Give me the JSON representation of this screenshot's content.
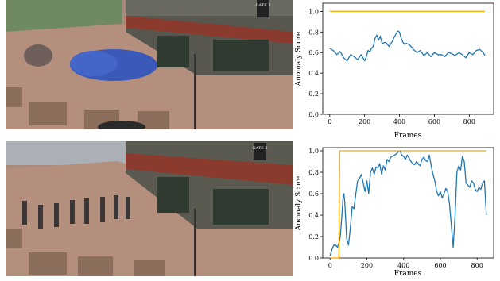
{
  "photos": [
    {
      "scene": "plaza crowd in blue uniforms",
      "sign_text": "GATE 3"
    },
    {
      "scene": "plaza pedestrians scattering",
      "sign_text": "GATE 3"
    }
  ],
  "colors": {
    "score": "#1f77b4",
    "label": "#ffa500"
  },
  "chart_data": [
    {
      "type": "line",
      "xlabel": "Frames",
      "ylabel": "Anomaly Score",
      "xlim": [
        -40,
        940
      ],
      "ylim": [
        0,
        1.08
      ],
      "xticks": [
        0,
        200,
        400,
        600,
        800
      ],
      "yticks": [
        0.0,
        0.2,
        0.4,
        0.6,
        0.8,
        1.0
      ],
      "series": [
        {
          "role": "score",
          "color": "#1f77b4",
          "x": [
            0,
            20,
            40,
            60,
            80,
            100,
            120,
            140,
            160,
            180,
            200,
            210,
            220,
            230,
            240,
            250,
            260,
            270,
            280,
            290,
            300,
            320,
            340,
            360,
            370,
            380,
            390,
            400,
            410,
            420,
            430,
            440,
            460,
            480,
            500,
            520,
            540,
            560,
            580,
            600,
            620,
            640,
            660,
            680,
            700,
            720,
            740,
            760,
            780,
            800,
            820,
            840,
            860,
            880,
            890
          ],
          "y": [
            0.64,
            0.62,
            0.58,
            0.61,
            0.55,
            0.52,
            0.58,
            0.56,
            0.53,
            0.58,
            0.52,
            0.56,
            0.62,
            0.61,
            0.64,
            0.66,
            0.74,
            0.77,
            0.72,
            0.76,
            0.69,
            0.7,
            0.66,
            0.71,
            0.75,
            0.78,
            0.81,
            0.8,
            0.74,
            0.7,
            0.68,
            0.69,
            0.67,
            0.63,
            0.6,
            0.62,
            0.57,
            0.6,
            0.56,
            0.6,
            0.58,
            0.58,
            0.56,
            0.6,
            0.59,
            0.57,
            0.6,
            0.58,
            0.55,
            0.6,
            0.58,
            0.62,
            0.63,
            0.6,
            0.57
          ]
        },
        {
          "role": "label",
          "color": "#ffa500",
          "x": [
            0,
            890
          ],
          "y": [
            1.0,
            1.0
          ]
        }
      ]
    },
    {
      "type": "line",
      "xlabel": "Frames",
      "ylabel": "Anomaly Score",
      "xlim": [
        -40,
        890
      ],
      "ylim": [
        0,
        1.03
      ],
      "xticks": [
        0,
        200,
        400,
        600,
        800
      ],
      "yticks": [
        0.0,
        0.2,
        0.4,
        0.6,
        0.8,
        1.0
      ],
      "series": [
        {
          "role": "score",
          "color": "#1f77b4",
          "x": [
            0,
            10,
            20,
            30,
            40,
            50,
            55,
            60,
            65,
            70,
            75,
            80,
            90,
            100,
            110,
            120,
            130,
            140,
            150,
            160,
            170,
            180,
            190,
            200,
            210,
            220,
            230,
            240,
            250,
            260,
            270,
            280,
            290,
            300,
            310,
            320,
            330,
            340,
            350,
            360,
            370,
            380,
            390,
            400,
            410,
            420,
            430,
            440,
            450,
            460,
            470,
            480,
            490,
            500,
            510,
            520,
            530,
            540,
            550,
            560,
            570,
            580,
            590,
            600,
            610,
            620,
            630,
            640,
            650,
            660,
            670,
            680,
            690,
            700,
            710,
            720,
            730,
            740,
            750,
            760,
            770,
            780,
            790,
            800,
            810,
            820,
            830,
            840,
            850
          ],
          "y": [
            0.02,
            0.08,
            0.12,
            0.12,
            0.1,
            0.15,
            0.2,
            0.3,
            0.42,
            0.55,
            0.6,
            0.52,
            0.18,
            0.12,
            0.28,
            0.48,
            0.46,
            0.6,
            0.72,
            0.74,
            0.78,
            0.7,
            0.62,
            0.72,
            0.6,
            0.8,
            0.84,
            0.78,
            0.85,
            0.84,
            0.88,
            0.78,
            0.86,
            0.82,
            0.92,
            0.9,
            0.94,
            0.95,
            0.96,
            0.97,
            0.99,
            1.0,
            0.96,
            0.95,
            0.92,
            0.96,
            0.93,
            0.9,
            0.88,
            0.87,
            0.9,
            0.88,
            0.86,
            0.92,
            0.94,
            0.91,
            0.9,
            0.96,
            0.86,
            0.78,
            0.72,
            0.62,
            0.58,
            0.62,
            0.56,
            0.6,
            0.65,
            0.62,
            0.5,
            0.3,
            0.1,
            0.4,
            0.8,
            0.86,
            0.82,
            0.95,
            0.9,
            0.7,
            0.68,
            0.66,
            0.72,
            0.7,
            0.64,
            0.62,
            0.66,
            0.64,
            0.7,
            0.72,
            0.4
          ]
        },
        {
          "role": "label",
          "color": "#ffa500",
          "x": [
            0,
            48,
            52,
            850
          ],
          "y": [
            0,
            0,
            1.0,
            1.0
          ]
        }
      ]
    }
  ]
}
